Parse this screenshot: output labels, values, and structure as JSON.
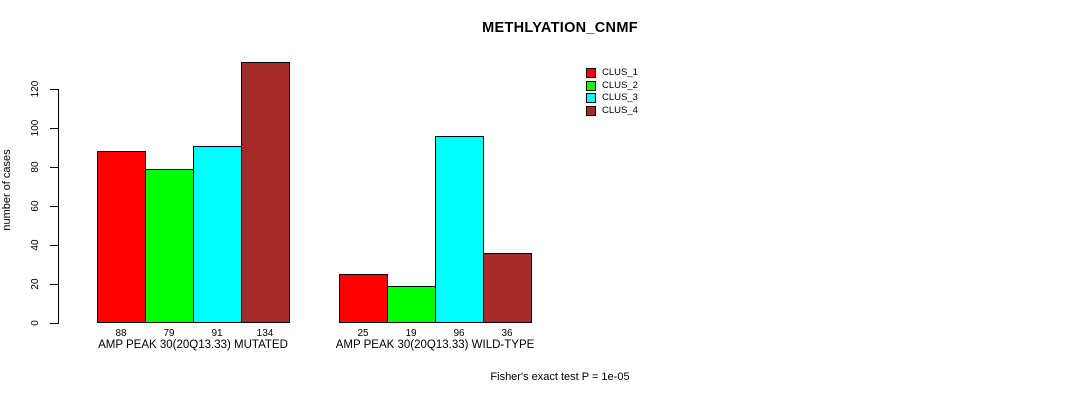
{
  "header": {
    "title": "METHLYATION_CNMF"
  },
  "footer": {
    "annotation": "Fisher's exact test P = 1e-05"
  },
  "chart_data": {
    "type": "bar",
    "title": "METHLYATION_CNMF",
    "xlabel": "",
    "ylabel": "number of cases",
    "ylim": [
      0,
      135
    ],
    "yticks": [
      0,
      20,
      40,
      60,
      80,
      100,
      120
    ],
    "grid": false,
    "legend_position": "top-right",
    "series": [
      {
        "name": "CLUS_1",
        "color": "#FF0000"
      },
      {
        "name": "CLUS_2",
        "color": "#00FF00"
      },
      {
        "name": "CLUS_3",
        "color": "#00FFFF"
      },
      {
        "name": "CLUS_4",
        "color": "#A52A2A"
      }
    ],
    "groups": [
      {
        "label": "AMP PEAK 30(20Q13.33) MUTATED",
        "values": [
          88,
          79,
          91,
          134
        ]
      },
      {
        "label": "AMP PEAK 30(20Q13.33) WILD-TYPE",
        "values": [
          25,
          19,
          96,
          36
        ]
      }
    ],
    "annotation": "Fisher's exact test P = 1e-05"
  }
}
